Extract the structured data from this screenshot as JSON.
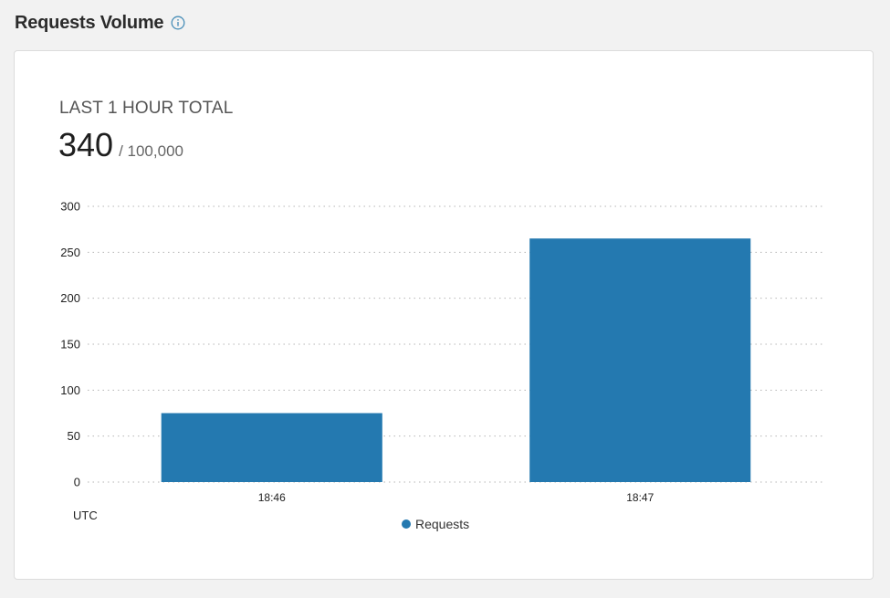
{
  "header": {
    "title": "Requests Volume",
    "info_icon": "info-circle-icon"
  },
  "summary": {
    "label": "LAST 1 HOUR TOTAL",
    "value": "340",
    "limit": "/ 100,000"
  },
  "colors": {
    "bar": "#2479b0",
    "grid": "#b5b5b5",
    "info_icon": "#4a8fb8"
  },
  "chart_data": {
    "type": "bar",
    "categories": [
      "18:46",
      "18:47"
    ],
    "series": [
      {
        "name": "Requests",
        "values": [
          75,
          265
        ]
      }
    ],
    "yticks": [
      0,
      50,
      100,
      150,
      200,
      250,
      300
    ],
    "ylim": [
      0,
      300
    ],
    "xlabel": "UTC",
    "grid": "dotted-horizontal",
    "legend": "bottom-center"
  }
}
